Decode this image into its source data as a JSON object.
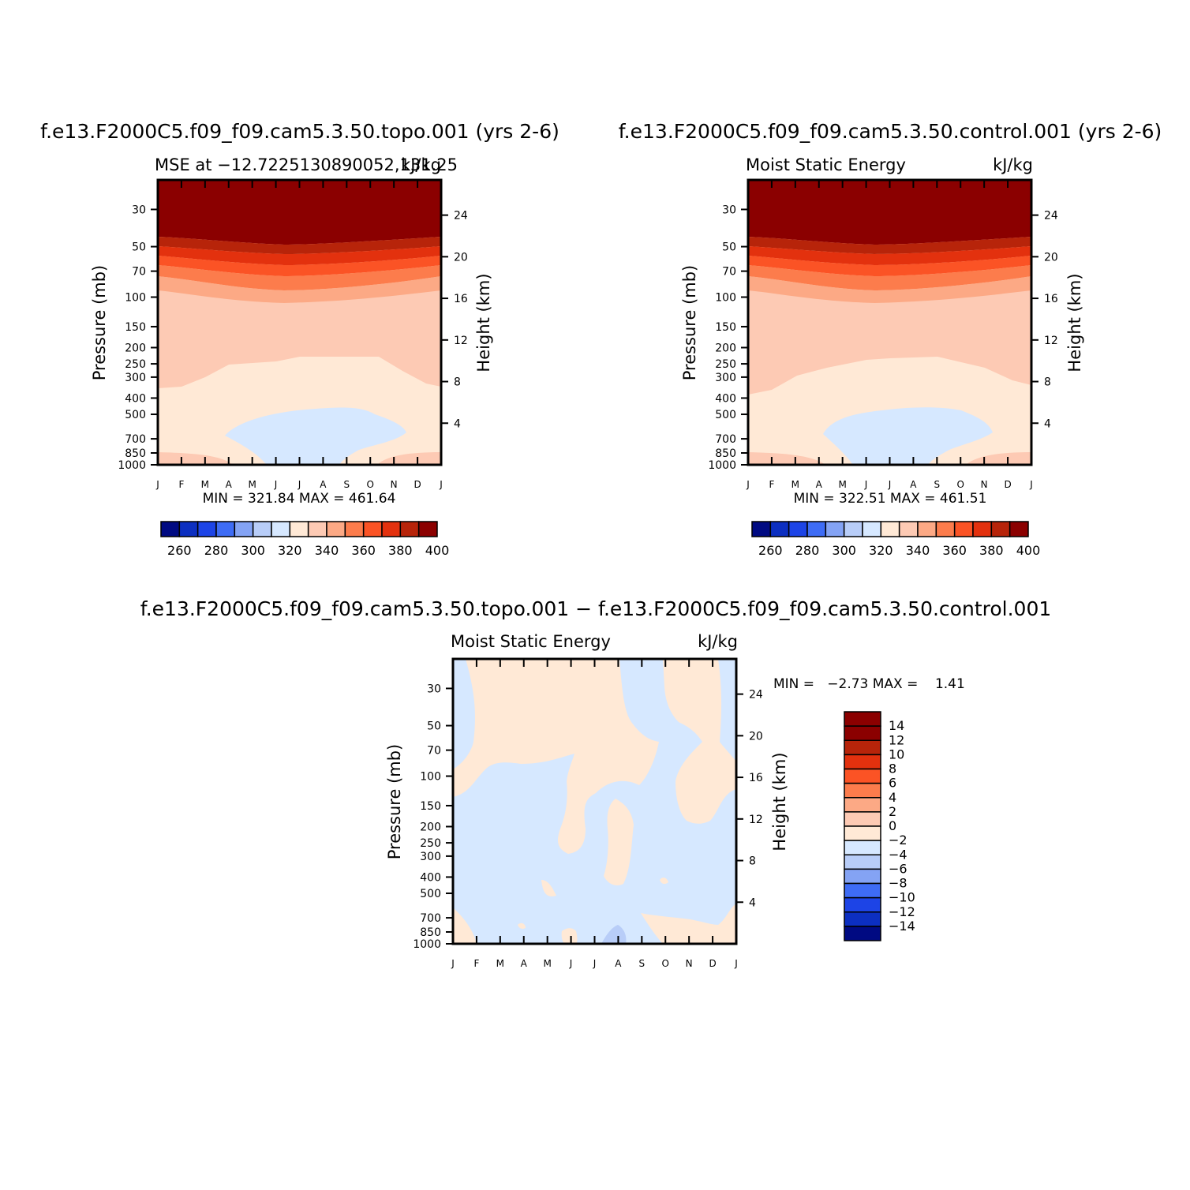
{
  "chart_data": [
    {
      "type": "contour",
      "title": "f.e13.F2000C5.f09_f09.cam5.3.50.topo.001 (yrs 2-6)",
      "left_string": "MSE at −12.7225130890052,131.25",
      "right_string": "kJ/kg",
      "ylabel": "Pressure (mb)",
      "y2label": "Height (km)",
      "stats_text": "MIN = 321.84 MAX = 461.64",
      "ylim": [
        1000,
        20
      ],
      "yticks": [
        "30",
        "50",
        "70",
        "100",
        "150",
        "200",
        "250",
        "300",
        "400",
        "500",
        "700",
        "850",
        "1000"
      ],
      "y2ticks": [
        "24",
        "20",
        "16",
        "12",
        "8",
        "4"
      ],
      "xticks": [
        "J",
        "F",
        "M",
        "A",
        "M",
        "J",
        "J",
        "A",
        "S",
        "O",
        "N",
        "D",
        "J"
      ],
      "colorbar_labels": [
        "260",
        "280",
        "300",
        "320",
        "340",
        "360",
        "380",
        "400"
      ]
    },
    {
      "type": "contour",
      "title": "f.e13.F2000C5.f09_f09.cam5.3.50.control.001 (yrs 2-6)",
      "left_string": "Moist Static Energy",
      "right_string": "kJ/kg",
      "ylabel": "Pressure (mb)",
      "y2label": "Height (km)",
      "stats_text": "MIN = 322.51 MAX = 461.51",
      "ylim": [
        1000,
        20
      ],
      "yticks": [
        "30",
        "50",
        "70",
        "100",
        "150",
        "200",
        "250",
        "300",
        "400",
        "500",
        "700",
        "850",
        "1000"
      ],
      "y2ticks": [
        "24",
        "20",
        "16",
        "12",
        "8",
        "4"
      ],
      "xticks": [
        "J",
        "F",
        "M",
        "A",
        "M",
        "J",
        "J",
        "A",
        "S",
        "O",
        "N",
        "D",
        "J"
      ],
      "colorbar_labels": [
        "260",
        "280",
        "300",
        "320",
        "340",
        "360",
        "380",
        "400"
      ]
    },
    {
      "type": "contour",
      "title": "f.e13.F2000C5.f09_f09.cam5.3.50.topo.001 − f.e13.F2000C5.f09_f09.cam5.3.50.control.001",
      "left_string": "Moist Static Energy",
      "right_string": "kJ/kg",
      "ylabel": "Pressure (mb)",
      "y2label": "Height (km)",
      "stats_text": "MIN =   −2.73 MAX =    1.41",
      "ylim": [
        1000,
        20
      ],
      "yticks": [
        "30",
        "50",
        "70",
        "100",
        "150",
        "200",
        "250",
        "300",
        "400",
        "500",
        "700",
        "850",
        "1000"
      ],
      "y2ticks": [
        "24",
        "20",
        "16",
        "12",
        "8",
        "4"
      ],
      "xticks": [
        "J",
        "F",
        "M",
        "A",
        "M",
        "J",
        "J",
        "A",
        "S",
        "O",
        "N",
        "D",
        "J"
      ],
      "colorbar_labels": [
        "14",
        "12",
        "10",
        "8",
        "6",
        "4",
        "2",
        "0",
        "−2",
        "−4",
        "−6",
        "−8",
        "−10",
        "−12",
        "−14"
      ]
    }
  ],
  "colors": {
    "abs_colorbar": [
      "#000a82",
      "#0c2fc1",
      "#1d44e6",
      "#3e6cf5",
      "#84a3f4",
      "#b8cdf8",
      "#d6e8ff",
      "#ffe9d6",
      "#fdcab4",
      "#fca985",
      "#fc7c4c",
      "#fb5325",
      "#e3310e",
      "#b7240a",
      "#8b0000"
    ],
    "diff_colorbar": [
      "#8b0000",
      "#b7240a",
      "#e3310e",
      "#fb5325",
      "#fc7c4c",
      "#fca985",
      "#fdcab4",
      "#ffe9d6",
      "#d6e8ff",
      "#b8cdf8",
      "#84a3f4",
      "#3e6cf5",
      "#1d44e6",
      "#0c2fc1",
      "#000a82"
    ]
  }
}
